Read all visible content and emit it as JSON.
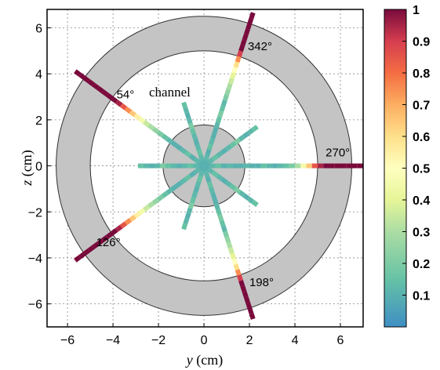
{
  "chart_data": {
    "type": "scatter",
    "xlabel_var": "y",
    "xlabel_unit": " (cm)",
    "ylabel_var": "z",
    "ylabel_unit": " (cm)",
    "xlim": [
      -6.9,
      7.0
    ],
    "ylim": [
      -7.0,
      6.8
    ],
    "xticks": [
      -6,
      -4,
      -2,
      0,
      2,
      4,
      6
    ],
    "yticks": [
      -6,
      -4,
      -2,
      0,
      2,
      4,
      6
    ],
    "xtick_labels": [
      "−6",
      "−4",
      "−2",
      "0",
      "2",
      "4",
      "6"
    ],
    "ytick_labels": [
      "−6",
      "−4",
      "−2",
      "0",
      "2",
      "4",
      "6"
    ],
    "grid": true,
    "geometry": {
      "inner_disc_radius": 1.8,
      "annulus_inner_radius": 5.0,
      "annulus_outer_radius": 6.5
    },
    "colorbar": {
      "range": [
        0,
        1
      ],
      "ticks": [
        0.1,
        0.2,
        0.3,
        0.4,
        0.5,
        0.6,
        0.7,
        0.8,
        0.9,
        1
      ],
      "tick_labels": [
        "0.1",
        "0.2",
        "0.3",
        "0.4",
        "0.5",
        "0.6",
        "0.7",
        "0.8",
        "0.9",
        "1"
      ]
    },
    "spokes": [
      {
        "angle_deg": 90,
        "length": 7.0,
        "label": "270°",
        "values": [
          0.1,
          0.12,
          0.15,
          0.1,
          0.12,
          0.1,
          0.1,
          0.12,
          0.1,
          0.1,
          0.15,
          0.12,
          0.1,
          0.12,
          0.15,
          0.2,
          0.3,
          0.45,
          0.65,
          0.85,
          0.95,
          1,
          1,
          1,
          1,
          1,
          1,
          1
        ]
      },
      {
        "angle_deg": 18,
        "length": 7.0,
        "label": "342°",
        "values": [
          0.1,
          0.12,
          0.1,
          0.15,
          0.12,
          0.1,
          0.1,
          0.12,
          0.15,
          0.2,
          0.15,
          0.12,
          0.2,
          0.25,
          0.3,
          0.35,
          0.4,
          0.5,
          0.6,
          0.75,
          0.9,
          1,
          1,
          1,
          1,
          1,
          1,
          1
        ]
      },
      {
        "angle_deg": 162,
        "length": 7.0,
        "label": "198°",
        "values": [
          0.1,
          0.12,
          0.1,
          0.15,
          0.12,
          0.1,
          0.1,
          0.12,
          0.15,
          0.2,
          0.15,
          0.12,
          0.2,
          0.25,
          0.3,
          0.35,
          0.4,
          0.5,
          0.6,
          0.75,
          0.9,
          1,
          1,
          1,
          1,
          1,
          1,
          1
        ]
      },
      {
        "angle_deg": 234,
        "length": 7.0,
        "label": "126°",
        "values": [
          0.1,
          0.12,
          0.1,
          0.15,
          0.12,
          0.1,
          0.1,
          0.12,
          0.15,
          0.2,
          0.25,
          0.3,
          0.35,
          0.45,
          0.55,
          0.65,
          0.75,
          0.85,
          0.95,
          1,
          1,
          1,
          1,
          1,
          1,
          1,
          1,
          1
        ]
      },
      {
        "angle_deg": 306,
        "length": 7.0,
        "label": "54°",
        "values": [
          0.1,
          0.12,
          0.1,
          0.15,
          0.12,
          0.1,
          0.1,
          0.12,
          0.15,
          0.2,
          0.25,
          0.3,
          0.35,
          0.45,
          0.55,
          0.65,
          0.75,
          0.85,
          0.95,
          1,
          1,
          1,
          1,
          1,
          1,
          1,
          1,
          1
        ]
      },
      {
        "angle_deg": 270,
        "length": 2.9,
        "label": "",
        "values": [
          0.1,
          0.12,
          0.15,
          0.12,
          0.1,
          0.12,
          0.15,
          0.2,
          0.12,
          0.1,
          0.12,
          0.15
        ]
      },
      {
        "angle_deg": 198,
        "length": 2.9,
        "label": "",
        "values": [
          0.1,
          0.12,
          0.15,
          0.12,
          0.1,
          0.12,
          0.15,
          0.2,
          0.12,
          0.1,
          0.12,
          0.15
        ]
      },
      {
        "angle_deg": 126,
        "length": 2.9,
        "label": "",
        "values": [
          0.1,
          0.12,
          0.15,
          0.12,
          0.1,
          0.12,
          0.15,
          0.2,
          0.12,
          0.1,
          0.12,
          0.15
        ]
      },
      {
        "angle_deg": 54,
        "length": 2.9,
        "label": "",
        "values": [
          0.1,
          0.12,
          0.15,
          0.12,
          0.1,
          0.12,
          0.15,
          0.2,
          0.12,
          0.1,
          0.12,
          0.15
        ]
      },
      {
        "angle_deg": 342,
        "length": 2.9,
        "label": "",
        "values": [
          0.1,
          0.12,
          0.15,
          0.12,
          0.1,
          0.12,
          0.15,
          0.2,
          0.12,
          0.1,
          0.12,
          0.15
        ]
      }
    ],
    "annotations": [
      {
        "text": "channel",
        "style": "serif"
      }
    ]
  }
}
